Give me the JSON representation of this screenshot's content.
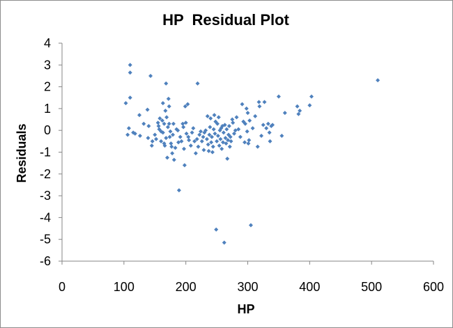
{
  "chart_data": {
    "type": "scatter",
    "title": "HP  Residual Plot",
    "xlabel": "HP",
    "ylabel": "Residuals",
    "xlim": [
      0,
      600
    ],
    "ylim": [
      -6,
      4
    ],
    "x_ticks": [
      0,
      100,
      200,
      300,
      400,
      500,
      600
    ],
    "y_ticks": [
      4,
      3,
      2,
      1,
      0,
      -1,
      -2,
      -3,
      -4,
      -5,
      -6
    ],
    "x_tick_labels": [
      "0",
      "100",
      "200",
      "300",
      "400",
      "500",
      "600"
    ],
    "y_tick_labels": [
      "4",
      "3",
      "2",
      "1",
      "0",
      "-1",
      "-2",
      "-3",
      "-4",
      "-5",
      "-6"
    ],
    "grid": false,
    "legend": "none",
    "marker_color": "#4f81bd",
    "marker": "diamond",
    "points": [
      [
        103,
        1.25
      ],
      [
        106,
        -0.2
      ],
      [
        108,
        0.1
      ],
      [
        110,
        1.5
      ],
      [
        110,
        3.0
      ],
      [
        110,
        2.65
      ],
      [
        115,
        -0.1
      ],
      [
        118,
        -0.15
      ],
      [
        125,
        0.7
      ],
      [
        126,
        -0.25
      ],
      [
        132,
        0.3
      ],
      [
        138,
        0.95
      ],
      [
        139,
        -0.35
      ],
      [
        140,
        0.2
      ],
      [
        143,
        2.5
      ],
      [
        145,
        -0.7
      ],
      [
        146,
        -0.5
      ],
      [
        150,
        -0.2
      ],
      [
        152,
        -0.4
      ],
      [
        155,
        0.35
      ],
      [
        156,
        0.2
      ],
      [
        157,
        0.05
      ],
      [
        158,
        0.55
      ],
      [
        160,
        -0.05
      ],
      [
        160,
        -0.5
      ],
      [
        162,
        0.45
      ],
      [
        163,
        -0.1
      ],
      [
        163,
        1.25
      ],
      [
        165,
        -0.6
      ],
      [
        165,
        0.3
      ],
      [
        166,
        -0.7
      ],
      [
        167,
        0.9
      ],
      [
        168,
        2.15
      ],
      [
        168,
        -0.35
      ],
      [
        169,
        0.6
      ],
      [
        170,
        -1.25
      ],
      [
        171,
        0.15
      ],
      [
        172,
        1.45
      ],
      [
        173,
        1.1
      ],
      [
        173,
        0.3
      ],
      [
        174,
        -0.3
      ],
      [
        175,
        -0.05
      ],
      [
        176,
        -0.6
      ],
      [
        177,
        -0.75
      ],
      [
        178,
        -1.05
      ],
      [
        179,
        -0.2
      ],
      [
        180,
        0.3
      ],
      [
        181,
        -1.35
      ],
      [
        183,
        -0.8
      ],
      [
        185,
        0.05
      ],
      [
        187,
        0.0
      ],
      [
        188,
        -0.55
      ],
      [
        189,
        -2.75
      ],
      [
        191,
        -0.3
      ],
      [
        193,
        -0.5
      ],
      [
        195,
        0.3
      ],
      [
        196,
        0.15
      ],
      [
        197,
        -0.85
      ],
      [
        198,
        -1.6
      ],
      [
        199,
        1.1
      ],
      [
        200,
        0.35
      ],
      [
        201,
        -0.15
      ],
      [
        203,
        1.2
      ],
      [
        204,
        -0.3
      ],
      [
        205,
        -0.45
      ],
      [
        208,
        -0.7
      ],
      [
        210,
        -0.1
      ],
      [
        212,
        0.1
      ],
      [
        214,
        -0.5
      ],
      [
        216,
        -1.05
      ],
      [
        218,
        -0.4
      ],
      [
        219,
        2.15
      ],
      [
        220,
        -0.75
      ],
      [
        222,
        -0.2
      ],
      [
        224,
        -0.05
      ],
      [
        226,
        -0.5
      ],
      [
        228,
        -0.3
      ],
      [
        229,
        -0.9
      ],
      [
        230,
        -0.1
      ],
      [
        232,
        0.0
      ],
      [
        234,
        -0.4
      ],
      [
        235,
        0.65
      ],
      [
        236,
        -0.65
      ],
      [
        237,
        -0.95
      ],
      [
        238,
        -0.2
      ],
      [
        239,
        0.15
      ],
      [
        240,
        0.55
      ],
      [
        241,
        -0.55
      ],
      [
        242,
        -0.3
      ],
      [
        243,
        -1.0
      ],
      [
        244,
        -0.75
      ],
      [
        245,
        0.05
      ],
      [
        246,
        0.7
      ],
      [
        247,
        -0.15
      ],
      [
        248,
        0.4
      ],
      [
        249,
        -4.55
      ],
      [
        250,
        -0.5
      ],
      [
        251,
        0.3
      ],
      [
        252,
        -0.25
      ],
      [
        253,
        0.6
      ],
      [
        254,
        -0.7
      ],
      [
        255,
        0.0
      ],
      [
        256,
        -0.4
      ],
      [
        257,
        0.1
      ],
      [
        258,
        -0.85
      ],
      [
        259,
        0.2
      ],
      [
        260,
        -0.55
      ],
      [
        261,
        -0.1
      ],
      [
        262,
        -5.15
      ],
      [
        263,
        0.25
      ],
      [
        264,
        -0.35
      ],
      [
        265,
        -0.6
      ],
      [
        266,
        0.05
      ],
      [
        267,
        -1.3
      ],
      [
        268,
        -0.45
      ],
      [
        269,
        -0.2
      ],
      [
        270,
        0.2
      ],
      [
        271,
        -0.75
      ],
      [
        272,
        -0.3
      ],
      [
        273,
        -0.5
      ],
      [
        275,
        0.5
      ],
      [
        276,
        0.35
      ],
      [
        278,
        -0.15
      ],
      [
        280,
        0.0
      ],
      [
        282,
        0.6
      ],
      [
        285,
        0.05
      ],
      [
        288,
        -0.3
      ],
      [
        291,
        1.2
      ],
      [
        293,
        0.4
      ],
      [
        295,
        -0.55
      ],
      [
        296,
        0.3
      ],
      [
        298,
        1.0
      ],
      [
        299,
        -0.05
      ],
      [
        300,
        0.8
      ],
      [
        301,
        -0.6
      ],
      [
        302,
        -0.45
      ],
      [
        303,
        0.45
      ],
      [
        305,
        -4.35
      ],
      [
        308,
        0.1
      ],
      [
        312,
        0.65
      ],
      [
        316,
        -0.75
      ],
      [
        318,
        1.3
      ],
      [
        319,
        1.1
      ],
      [
        322,
        -0.25
      ],
      [
        325,
        0.25
      ],
      [
        327,
        1.3
      ],
      [
        330,
        0.1
      ],
      [
        333,
        0.3
      ],
      [
        335,
        -0.1
      ],
      [
        336,
        -0.5
      ],
      [
        338,
        0.2
      ],
      [
        340,
        0.25
      ],
      [
        350,
        1.55
      ],
      [
        355,
        -0.25
      ],
      [
        360,
        0.8
      ],
      [
        380,
        1.1
      ],
      [
        382,
        0.75
      ],
      [
        384,
        0.9
      ],
      [
        400,
        1.15
      ],
      [
        403,
        1.55
      ],
      [
        510,
        2.3
      ]
    ]
  }
}
